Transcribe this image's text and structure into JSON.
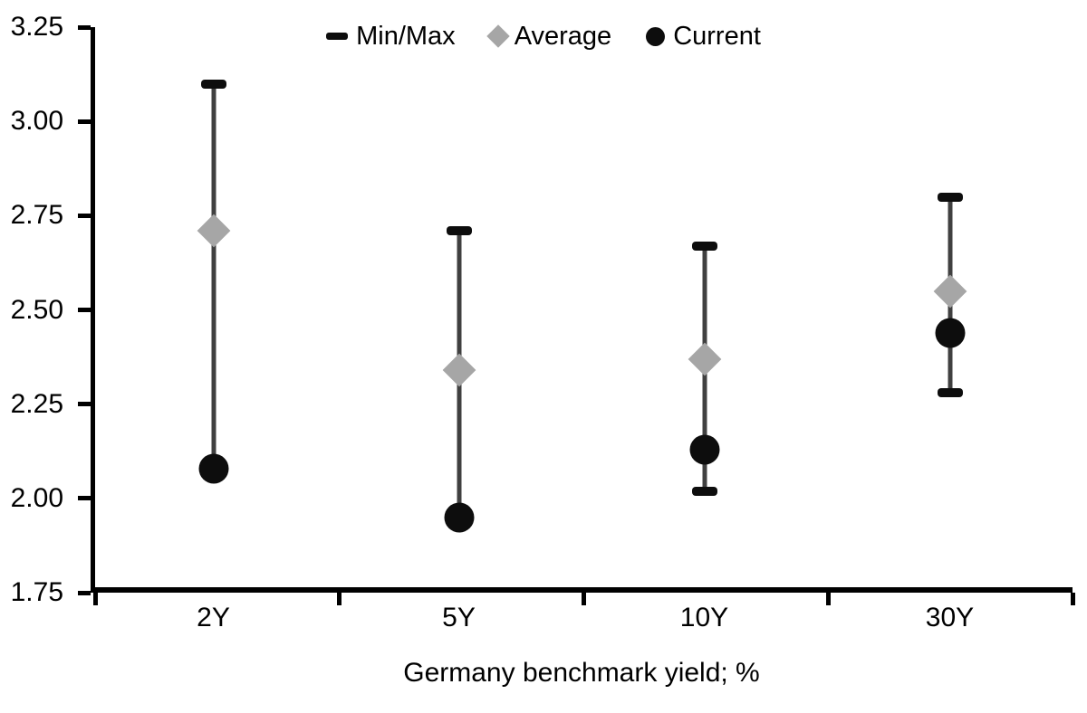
{
  "legend": {
    "items": [
      {
        "label": "Min/Max",
        "marker": "dash",
        "color": "#0d0d0d"
      },
      {
        "label": "Average",
        "marker": "diamond",
        "color": "#a6a6a6"
      },
      {
        "label": "Current",
        "marker": "circle",
        "color": "#0d0d0d"
      }
    ]
  },
  "chart_data": {
    "type": "scatter",
    "title": "",
    "xlabel": "Germany benchmark yield; %",
    "ylabel": "",
    "ylim": [
      1.75,
      3.25
    ],
    "yticks": [
      "3.25",
      "3.00",
      "2.75",
      "2.50",
      "2.25",
      "2.00",
      "1.75"
    ],
    "grid": false,
    "legend_position": "top-center",
    "categories": [
      "2Y",
      "5Y",
      "10Y",
      "30Y"
    ],
    "series": [
      {
        "name": "Min/Max",
        "type": "range",
        "marker": "dash",
        "cap_color": "#0d0d0d",
        "line_color": "#404040",
        "max": [
          3.1,
          2.71,
          2.67,
          2.8
        ],
        "min": [
          2.08,
          1.95,
          2.02,
          2.28
        ],
        "min_cap_visible": [
          false,
          false,
          true,
          true
        ]
      },
      {
        "name": "Average",
        "type": "point",
        "marker": "diamond",
        "color": "#a6a6a6",
        "values": [
          2.71,
          2.34,
          2.37,
          2.55
        ]
      },
      {
        "name": "Current",
        "type": "point",
        "marker": "circle",
        "color": "#0d0d0d",
        "values": [
          2.08,
          1.95,
          2.13,
          2.44
        ]
      }
    ]
  }
}
